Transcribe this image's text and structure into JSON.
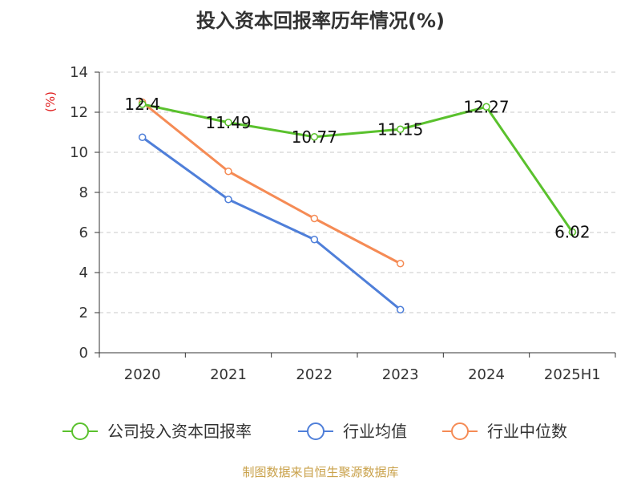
{
  "title": "投入资本回报率历年情况(%)",
  "source": "制图数据来自恒生聚源数据库",
  "colors": {
    "series_0": "#5ac12d",
    "series_1": "#4f7fd9",
    "series_2": "#f58b55",
    "ylabel": "#e02020"
  },
  "chart_data": {
    "type": "line",
    "title": "投入资本回报率历年情况(%)",
    "ylabel": "(%)",
    "xlabel": "",
    "categories": [
      "2020",
      "2021",
      "2022",
      "2023",
      "2024",
      "2025H1"
    ],
    "ylim": [
      0,
      14
    ],
    "yticks": [
      0,
      2,
      4,
      6,
      8,
      10,
      12,
      14
    ],
    "grid": true,
    "legend_position": "bottom",
    "series": [
      {
        "name": "公司投入资本回报率",
        "values": [
          12.4,
          11.49,
          10.77,
          11.15,
          12.27,
          6.02
        ],
        "labels": [
          "12.4",
          "11.49",
          "10.77",
          "11.15",
          "12.27",
          "6.02"
        ]
      },
      {
        "name": "行业均值",
        "values": [
          10.75,
          7.65,
          5.65,
          2.15,
          null,
          null
        ]
      },
      {
        "name": "行业中位数",
        "values": [
          12.5,
          9.05,
          6.7,
          4.45,
          null,
          null
        ]
      }
    ]
  }
}
